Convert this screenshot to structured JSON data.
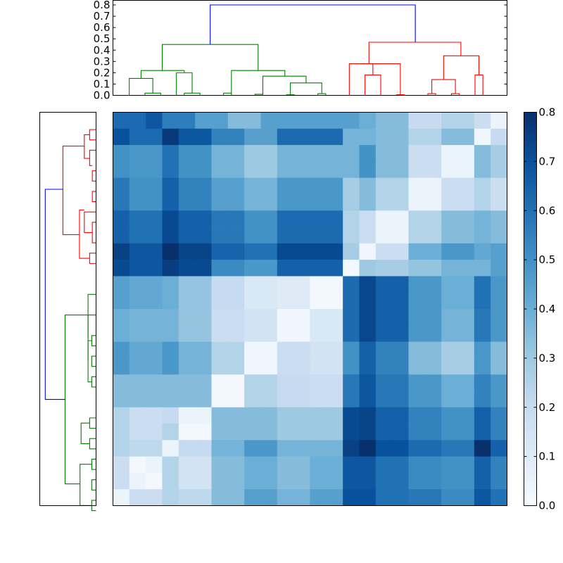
{
  "chart_data": [
    {
      "type": "heatmap",
      "colormap": "Blues",
      "n": 24,
      "row_order_top_to_bottom": [
        22,
        23,
        21,
        20,
        18,
        19,
        16,
        17,
        12,
        13,
        14,
        15,
        10,
        11,
        8,
        9,
        4,
        5,
        6,
        7,
        0,
        1,
        2,
        3
      ],
      "column_order_left_to_right": [
        0,
        1,
        2,
        3,
        4,
        5,
        6,
        7,
        8,
        9,
        10,
        11,
        12,
        13,
        14,
        15,
        16,
        17,
        18,
        19,
        20,
        21,
        22,
        23
      ],
      "row_groups": [
        {
          "rows": [
            22
          ],
          "values": [
            0.62,
            0.62,
            0.68,
            0.56,
            0.56,
            0.45,
            0.45,
            0.35,
            0.35,
            0.45,
            0.45,
            0.45,
            0.45,
            0.45,
            0.45,
            0.4,
            0.35,
            0.35,
            0.2,
            0.2,
            0.25,
            0.25,
            0.18,
            0.05
          ]
        },
        {
          "rows": [
            23
          ],
          "values": [
            0.7,
            0.62,
            0.62,
            0.77,
            0.68,
            0.68,
            0.55,
            0.55,
            0.45,
            0.45,
            0.62,
            0.62,
            0.62,
            0.62,
            0.38,
            0.38,
            0.35,
            0.35,
            0.25,
            0.25,
            0.35,
            0.35,
            0.03,
            0.2
          ]
        },
        {
          "rows": [
            21,
            20
          ],
          "values": [
            0.5,
            0.48,
            0.48,
            0.6,
            0.5,
            0.5,
            0.38,
            0.38,
            0.3,
            0.3,
            0.38,
            0.38,
            0.38,
            0.38,
            0.38,
            0.5,
            0.35,
            0.35,
            0.18,
            0.18,
            0.05,
            0.05,
            0.35,
            0.28
          ]
        },
        {
          "rows": [
            18,
            19
          ],
          "values": [
            0.58,
            0.5,
            0.5,
            0.65,
            0.55,
            0.55,
            0.45,
            0.45,
            0.38,
            0.38,
            0.48,
            0.48,
            0.48,
            0.48,
            0.28,
            0.35,
            0.25,
            0.25,
            0.05,
            0.05,
            0.18,
            0.18,
            0.25,
            0.18
          ]
        },
        {
          "rows": [
            16,
            17
          ],
          "values": [
            0.65,
            0.6,
            0.6,
            0.72,
            0.65,
            0.65,
            0.58,
            0.58,
            0.5,
            0.5,
            0.62,
            0.62,
            0.62,
            0.62,
            0.25,
            0.18,
            0.05,
            0.05,
            0.25,
            0.25,
            0.35,
            0.35,
            0.38,
            0.35
          ]
        },
        {
          "rows": [
            12
          ],
          "values": [
            0.75,
            0.68,
            0.68,
            0.8,
            0.74,
            0.74,
            0.64,
            0.64,
            0.6,
            0.6,
            0.72,
            0.72,
            0.72,
            0.72,
            0.28,
            0.03,
            0.18,
            0.18,
            0.4,
            0.4,
            0.48,
            0.48,
            0.42,
            0.45
          ]
        },
        {
          "rows": [
            13
          ],
          "values": [
            0.72,
            0.68,
            0.68,
            0.76,
            0.72,
            0.72,
            0.52,
            0.52,
            0.48,
            0.48,
            0.65,
            0.65,
            0.65,
            0.65,
            0.02,
            0.3,
            0.28,
            0.28,
            0.32,
            0.32,
            0.38,
            0.38,
            0.38,
            0.45
          ]
        },
        {
          "rows": [
            14,
            15
          ],
          "values": [
            0.45,
            0.42,
            0.42,
            0.4,
            0.32,
            0.32,
            0.2,
            0.2,
            0.12,
            0.12,
            0.1,
            0.1,
            0.02,
            0.02,
            0.62,
            0.73,
            0.65,
            0.65,
            0.48,
            0.48,
            0.4,
            0.4,
            0.6,
            0.48
          ]
        },
        {
          "rows": [
            10,
            11
          ],
          "values": [
            0.4,
            0.38,
            0.38,
            0.38,
            0.32,
            0.32,
            0.18,
            0.18,
            0.15,
            0.15,
            0.03,
            0.03,
            0.12,
            0.12,
            0.62,
            0.73,
            0.65,
            0.65,
            0.48,
            0.48,
            0.38,
            0.38,
            0.58,
            0.48
          ]
        },
        {
          "rows": [
            8,
            9
          ],
          "values": [
            0.48,
            0.42,
            0.42,
            0.48,
            0.38,
            0.38,
            0.25,
            0.25,
            0.03,
            0.03,
            0.18,
            0.18,
            0.15,
            0.15,
            0.5,
            0.65,
            0.55,
            0.55,
            0.35,
            0.35,
            0.28,
            0.28,
            0.48,
            0.35
          ]
        },
        {
          "rows": [
            4,
            5
          ],
          "values": [
            0.35,
            0.35,
            0.35,
            0.35,
            0.35,
            0.35,
            0.02,
            0.02,
            0.25,
            0.25,
            0.2,
            0.2,
            0.18,
            0.18,
            0.58,
            0.68,
            0.58,
            0.58,
            0.48,
            0.48,
            0.4,
            0.4,
            0.55,
            0.48
          ]
        },
        {
          "rows": [
            6
          ],
          "values": [
            0.25,
            0.18,
            0.18,
            0.2,
            0.05,
            0.05,
            0.35,
            0.35,
            0.35,
            0.35,
            0.3,
            0.3,
            0.3,
            0.3,
            0.72,
            0.74,
            0.65,
            0.65,
            0.55,
            0.55,
            0.5,
            0.5,
            0.65,
            0.55
          ]
        },
        {
          "rows": [
            7
          ],
          "values": [
            0.25,
            0.18,
            0.18,
            0.25,
            0.02,
            0.02,
            0.35,
            0.35,
            0.35,
            0.35,
            0.3,
            0.3,
            0.3,
            0.3,
            0.72,
            0.74,
            0.65,
            0.65,
            0.55,
            0.55,
            0.5,
            0.5,
            0.65,
            0.55
          ]
        },
        {
          "rows": [
            0
          ],
          "values": [
            0.25,
            0.22,
            0.22,
            0.05,
            0.2,
            0.2,
            0.38,
            0.38,
            0.48,
            0.48,
            0.38,
            0.38,
            0.38,
            0.38,
            0.75,
            0.8,
            0.7,
            0.7,
            0.62,
            0.62,
            0.58,
            0.58,
            0.8,
            0.65
          ]
        },
        {
          "rows": [
            1
          ],
          "values": [
            0.18,
            0.02,
            0.05,
            0.25,
            0.15,
            0.15,
            0.35,
            0.35,
            0.4,
            0.4,
            0.35,
            0.35,
            0.4,
            0.4,
            0.68,
            0.68,
            0.6,
            0.6,
            0.52,
            0.52,
            0.5,
            0.5,
            0.65,
            0.55
          ]
        },
        {
          "rows": [
            2
          ],
          "values": [
            0.18,
            0.05,
            0.02,
            0.25,
            0.15,
            0.15,
            0.35,
            0.35,
            0.4,
            0.4,
            0.35,
            0.35,
            0.4,
            0.4,
            0.68,
            0.68,
            0.6,
            0.6,
            0.52,
            0.52,
            0.5,
            0.5,
            0.65,
            0.55
          ]
        },
        {
          "rows": [
            3
          ],
          "values": [
            0.05,
            0.18,
            0.18,
            0.25,
            0.22,
            0.22,
            0.35,
            0.35,
            0.45,
            0.45,
            0.38,
            0.38,
            0.45,
            0.45,
            0.7,
            0.7,
            0.6,
            0.6,
            0.58,
            0.58,
            0.52,
            0.52,
            0.68,
            0.6
          ]
        }
      ],
      "colorbar": {
        "range": [
          0.0,
          0.8
        ],
        "ticks": [
          "0.0",
          "0.1",
          "0.2",
          "0.3",
          "0.4",
          "0.5",
          "0.6",
          "0.7",
          "0.8"
        ]
      }
    },
    {
      "type": "dendrogram",
      "orientation": "top",
      "n_leaves": 24,
      "ylim": [
        0.0,
        0.8
      ],
      "yticks": [
        "0.0",
        "0.1",
        "0.2",
        "0.3",
        "0.4",
        "0.5",
        "0.6",
        "0.7",
        "0.8"
      ],
      "colors": {
        "above_cut": "#0000ff",
        "cluster_a": "#008000",
        "cluster_b": "#ff0000"
      },
      "merges": [
        [
          0,
          1,
          0.02,
          "g"
        ],
        [
          2,
          3,
          0.02,
          "g"
        ],
        [
          4,
          5,
          0.01,
          "g"
        ],
        [
          6,
          7,
          0.01,
          "g"
        ],
        [
          8,
          9,
          0.005,
          "g"
        ],
        [
          10,
          11,
          0.015,
          "g"
        ],
        [
          12,
          13,
          0.005,
          "r"
        ],
        [
          14,
          15,
          0.015,
          "r"
        ],
        [
          16,
          17,
          0.01,
          "r"
        ],
        [
          18,
          19,
          0.015,
          "r"
        ],
        [
          20,
          21,
          0.01,
          "r"
        ],
        [
          22,
          23,
          0.01,
          "r"
        ],
        [
          24,
          -1,
          0.15,
          "g"
        ],
        [
          25,
          -1,
          0.2,
          "g"
        ],
        [
          27,
          28,
          0.11,
          "g"
        ],
        [
          26,
          29,
          0.17,
          "g"
        ],
        [
          30,
          31,
          0.22,
          "g"
        ],
        [
          32,
          33,
          0.22,
          "g"
        ],
        [
          34,
          35,
          0.45,
          "g"
        ],
        [
          36,
          -1,
          0.18,
          "r"
        ],
        [
          37,
          -1,
          0.14,
          "r"
        ],
        [
          38,
          39,
          0.28,
          "r"
        ],
        [
          40,
          41,
          0.35,
          "r"
        ],
        [
          42,
          43,
          0.47,
          "r"
        ],
        [
          44,
          45,
          0.8,
          "b"
        ]
      ]
    },
    {
      "type": "dendrogram",
      "orientation": "left",
      "n_leaves": 24,
      "colors": {
        "above_cut": "#0000ff",
        "cluster_a": "#ff0000",
        "cluster_b": "#008000"
      }
    }
  ]
}
